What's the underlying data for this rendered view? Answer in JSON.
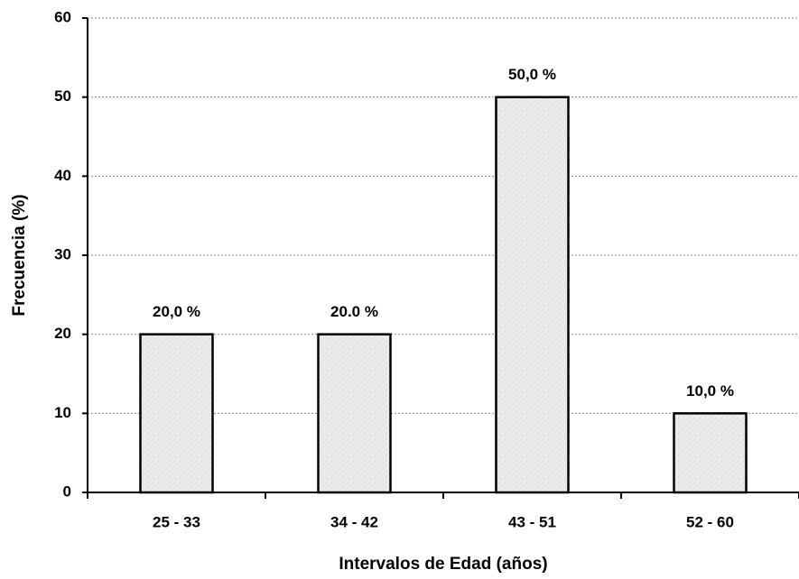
{
  "chart_data": {
    "type": "bar",
    "x_label": "Intervalos de Edad (años)",
    "y_label": "Frecuencia (%)",
    "categories": [
      "25 - 33",
      "34 - 42",
      "43 - 51",
      "52 - 60"
    ],
    "values": [
      20,
      20,
      50,
      10
    ],
    "value_labels": [
      "20,0 %",
      "20.0 %",
      "50,0 %",
      "10,0 %"
    ],
    "color": "#e4e4e4",
    "ylim": [
      0,
      60
    ],
    "yticks": [
      0,
      10,
      20,
      30,
      40,
      50,
      60
    ],
    "grid": true
  }
}
